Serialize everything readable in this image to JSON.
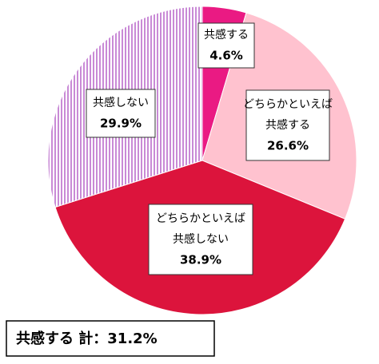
{
  "chart_data": {
    "type": "pie",
    "categories": [
      [
        "共感する"
      ],
      [
        "どちらかといえば",
        "共感する"
      ],
      [
        "どちらかといえば",
        "共感しない"
      ],
      [
        "共感しない"
      ]
    ],
    "values": [
      4.6,
      26.6,
      38.9,
      29.9
    ],
    "value_labels": [
      "4.6%",
      "26.6%",
      "38.9%",
      "29.9%"
    ],
    "colors": [
      "#ea1a83",
      "#ffc2cf",
      "#dc143c",
      "#c98ad6"
    ],
    "patterns": [
      null,
      null,
      null,
      "vertical-stripes"
    ],
    "annotation": "共感する 計：31.2%"
  }
}
